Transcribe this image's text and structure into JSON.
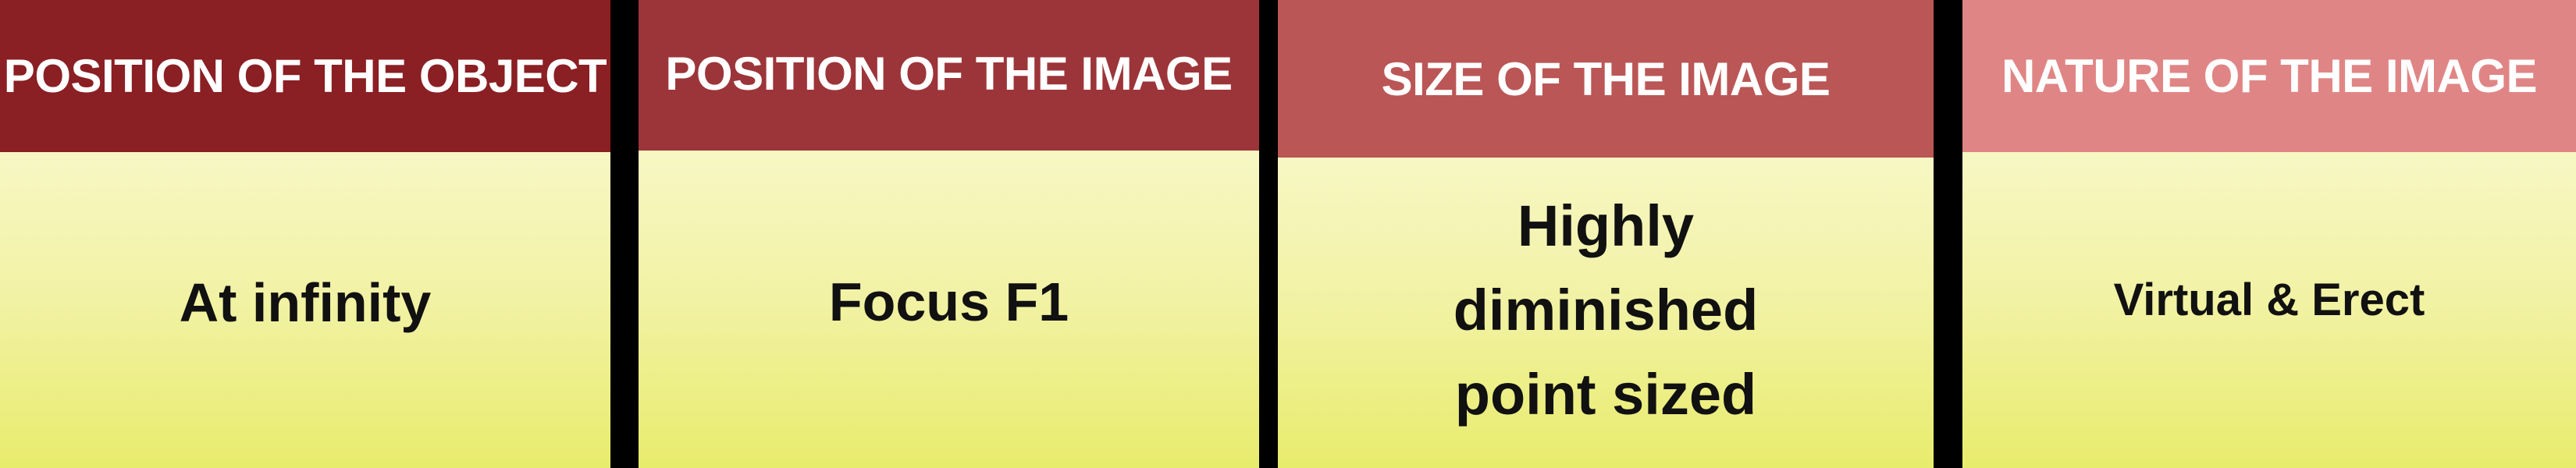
{
  "panels": [
    {
      "header": "POSITION OF THE OBJECT",
      "value": "At infinity"
    },
    {
      "header": "POSITION OF THE IMAGE",
      "value": "Focus F1"
    },
    {
      "header": "SIZE OF THE IMAGE",
      "value_lines": [
        "Highly",
        "diminished",
        "point sized"
      ]
    },
    {
      "header": "NATURE OF THE IMAGE",
      "value": "Virtual & Erect"
    }
  ],
  "colors": {
    "header_1": "#8a1f24",
    "header_2": "#9c3539",
    "header_3": "#bb5656",
    "header_4": "#e08585",
    "body_top": "#f7f7c4",
    "body_bottom": "#e8ec6c",
    "divider": "#000000"
  }
}
